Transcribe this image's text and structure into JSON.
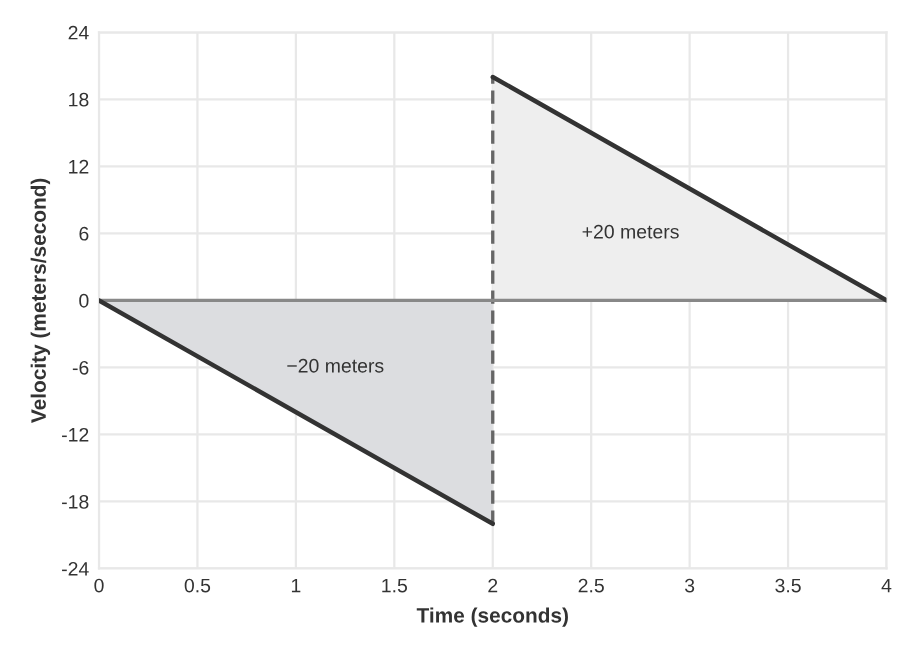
{
  "chart_data": {
    "type": "area",
    "xlabel": "Time (seconds)",
    "ylabel": "Velocity (meters/second)",
    "series": [
      {
        "x": [
          0,
          2
        ],
        "values": [
          0,
          -20
        ],
        "color": "#dcdde0"
      },
      {
        "x": [
          2,
          4
        ],
        "values": [
          20,
          0
        ],
        "color": "#eeeeee"
      },
      {
        "type": "line",
        "x": [
          2,
          2
        ],
        "values": [
          -20,
          20
        ],
        "color": "#666666",
        "line_style": "dashed"
      }
    ],
    "ref_lines": [
      {
        "axis": "y",
        "value": 0,
        "color": "#888888"
      }
    ],
    "annotations": [
      "−20 meters",
      "+20 meters"
    ],
    "xlim": [
      0,
      4
    ],
    "xticks": [
      0,
      0.5,
      1,
      1.5,
      2,
      2.5,
      3,
      3.5,
      4
    ],
    "ylim": [
      -24,
      24
    ],
    "yticks": [
      -24,
      -18,
      -12,
      -6,
      0,
      6,
      12,
      18,
      24
    ],
    "grid": true
  }
}
